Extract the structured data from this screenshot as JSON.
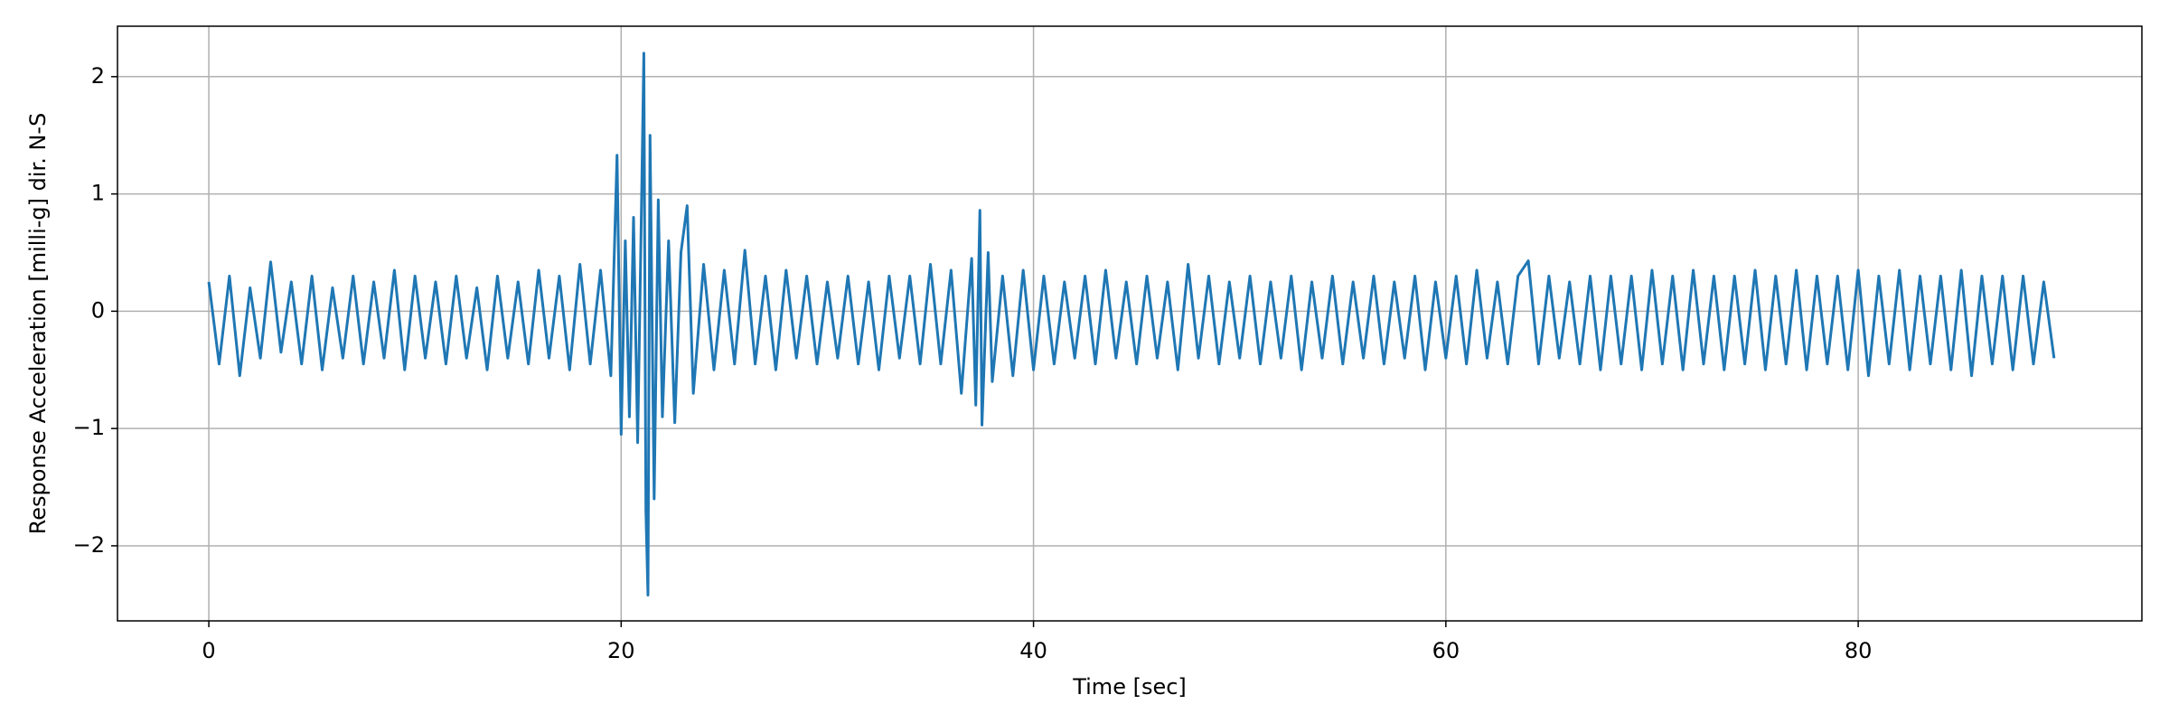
{
  "chart_data": {
    "type": "line",
    "xlabel": "Time [sec]",
    "ylabel": "Response Acceleration [milli-g] dir. N-S",
    "xlim": [
      -4.43,
      93.76
    ],
    "ylim": [
      -2.64,
      2.43
    ],
    "xticks": [
      0,
      20,
      40,
      60,
      80
    ],
    "yticks": [
      {
        "value": -2,
        "label": "−2"
      },
      {
        "value": -1,
        "label": "−1"
      },
      0,
      1,
      2
    ],
    "grid": true,
    "series": [
      {
        "color": "#1f77b4",
        "x": [
          0,
          0.5,
          1,
          1.5,
          2,
          2.5,
          3,
          3.5,
          4,
          4.5,
          5,
          5.5,
          6,
          6.5,
          7,
          7.5,
          8,
          8.5,
          9,
          9.5,
          10,
          10.5,
          11,
          11.5,
          12,
          12.5,
          13,
          13.5,
          14,
          14.5,
          15,
          15.5,
          16,
          16.5,
          17,
          17.5,
          18,
          18.5,
          19,
          19.5,
          19.8,
          20.0,
          20.2,
          20.4,
          20.6,
          20.8,
          21.0,
          21.1,
          21.2,
          21.3,
          21.4,
          21.6,
          21.8,
          22.0,
          22.3,
          22.6,
          22.9,
          23.2,
          23.5,
          24,
          24.5,
          25,
          25.5,
          26,
          26.5,
          27,
          27.5,
          28,
          28.5,
          29,
          29.5,
          30,
          30.5,
          31,
          31.5,
          32,
          32.5,
          33,
          33.5,
          34,
          34.5,
          35,
          35.5,
          36,
          36.5,
          37,
          37.2,
          37.4,
          37.5,
          37.8,
          38,
          38.5,
          39,
          39.5,
          40,
          40.5,
          41,
          41.5,
          42,
          42.5,
          43,
          43.5,
          44,
          44.5,
          45,
          45.5,
          46,
          46.5,
          47,
          47.5,
          48,
          48.5,
          49,
          49.5,
          50,
          50.5,
          51,
          51.5,
          52,
          52.5,
          53,
          53.5,
          54,
          54.5,
          55,
          55.5,
          56,
          56.5,
          57,
          57.5,
          58,
          58.5,
          59,
          59.5,
          60,
          60.5,
          61,
          61.5,
          62,
          62.5,
          63,
          63.5,
          64,
          64.5,
          65,
          65.5,
          66,
          66.5,
          67,
          67.5,
          68,
          68.5,
          69,
          69.5,
          70,
          70.5,
          71,
          71.5,
          72,
          72.5,
          73,
          73.5,
          74,
          74.5,
          75,
          75.5,
          76,
          76.5,
          77,
          77.5,
          78,
          78.5,
          79,
          79.5,
          80,
          80.5,
          81,
          81.5,
          82,
          82.5,
          83,
          83.5,
          84,
          84.5,
          85,
          85.5,
          86,
          86.5,
          87,
          87.5,
          88,
          88.5,
          89,
          89.5
        ],
        "values": [
          0.25,
          -0.45,
          0.3,
          -0.55,
          0.2,
          -0.4,
          0.42,
          -0.35,
          0.25,
          -0.45,
          0.3,
          -0.5,
          0.2,
          -0.4,
          0.3,
          -0.45,
          0.25,
          -0.4,
          0.35,
          -0.5,
          0.3,
          -0.4,
          0.25,
          -0.45,
          0.3,
          -0.4,
          0.2,
          -0.5,
          0.3,
          -0.4,
          0.25,
          -0.45,
          0.35,
          -0.4,
          0.3,
          -0.5,
          0.4,
          -0.45,
          0.35,
          -0.55,
          1.33,
          -1.05,
          0.6,
          -0.9,
          0.8,
          -1.12,
          1.05,
          2.2,
          -1.7,
          -2.42,
          1.5,
          -1.6,
          0.95,
          -0.9,
          0.6,
          -0.95,
          0.5,
          0.9,
          -0.7,
          0.4,
          -0.5,
          0.35,
          -0.45,
          0.52,
          -0.45,
          0.3,
          -0.5,
          0.35,
          -0.4,
          0.3,
          -0.45,
          0.25,
          -0.4,
          0.3,
          -0.45,
          0.25,
          -0.5,
          0.3,
          -0.4,
          0.3,
          -0.45,
          0.4,
          -0.45,
          0.35,
          -0.7,
          0.45,
          -0.8,
          0.86,
          -0.97,
          0.5,
          -0.6,
          0.3,
          -0.55,
          0.35,
          -0.5,
          0.3,
          -0.45,
          0.25,
          -0.4,
          0.3,
          -0.45,
          0.35,
          -0.4,
          0.25,
          -0.45,
          0.3,
          -0.4,
          0.25,
          -0.5,
          0.4,
          -0.4,
          0.3,
          -0.45,
          0.25,
          -0.4,
          0.3,
          -0.45,
          0.25,
          -0.4,
          0.3,
          -0.5,
          0.25,
          -0.4,
          0.3,
          -0.45,
          0.25,
          -0.4,
          0.3,
          -0.45,
          0.25,
          -0.4,
          0.3,
          -0.5,
          0.25,
          -0.4,
          0.3,
          -0.45,
          0.35,
          -0.4,
          0.25,
          -0.45,
          0.3,
          0.43,
          -0.45,
          0.3,
          -0.4,
          0.25,
          -0.45,
          0.3,
          -0.5,
          0.3,
          -0.45,
          0.3,
          -0.5,
          0.35,
          -0.45,
          0.3,
          -0.5,
          0.35,
          -0.45,
          0.3,
          -0.5,
          0.3,
          -0.45,
          0.35,
          -0.5,
          0.3,
          -0.45,
          0.35,
          -0.5,
          0.3,
          -0.45,
          0.3,
          -0.5,
          0.35,
          -0.55,
          0.3,
          -0.45,
          0.35,
          -0.5,
          0.3,
          -0.45,
          0.3,
          -0.5,
          0.35,
          -0.55,
          0.3,
          -0.45,
          0.3,
          -0.5,
          0.3,
          -0.45,
          0.25,
          -0.4
        ]
      }
    ]
  }
}
